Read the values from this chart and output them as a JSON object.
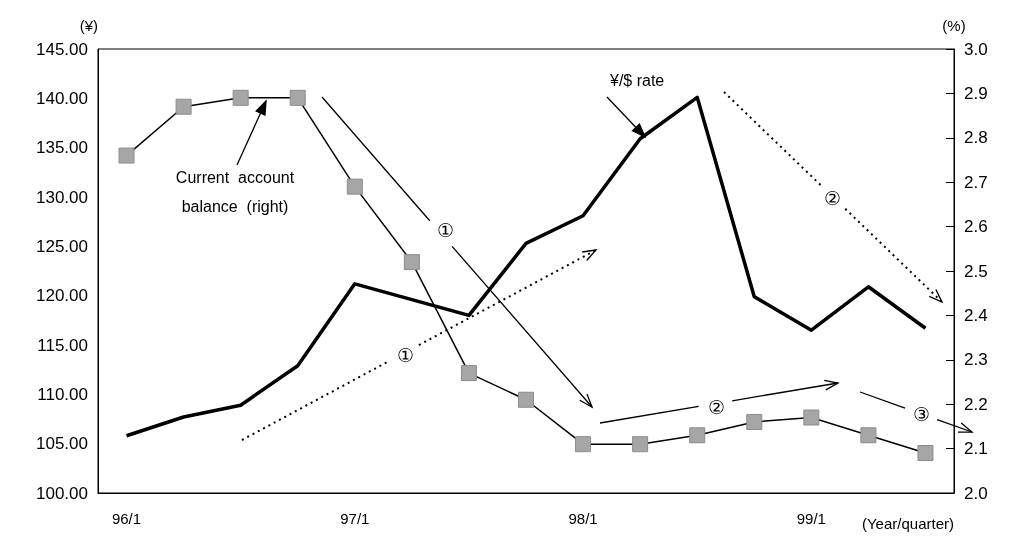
{
  "chart_data": {
    "type": "line",
    "ylabel": "(¥)",
    "y2label": "(%)",
    "xlabel": "(Year/quarter)",
    "categories": [
      "96/1",
      null,
      null,
      null,
      "97/1",
      null,
      null,
      null,
      "98/1",
      null,
      null,
      null,
      "99/1",
      null,
      null
    ],
    "series": [
      {
        "name": "¥/$ rate",
        "color": "#000000",
        "marker": "none",
        "values": [
          105.8,
          107.7,
          108.9,
          112.9,
          121.2,
          119.6,
          118.0,
          125.3,
          128.1,
          135.9,
          140.1,
          119.9,
          116.5,
          120.9,
          116.7
        ]
      },
      {
        "name": "Current account balance (right)",
        "color": "#000000",
        "axis": "y2",
        "marker": "square",
        "values": [
          2.76,
          2.87,
          2.89,
          2.89,
          2.69,
          2.52,
          2.27,
          2.21,
          2.11,
          2.11,
          2.13,
          2.16,
          2.17,
          2.13,
          2.09
        ]
      }
    ],
    "ylim": [
      100,
      145
    ],
    "yticks": [
      {
        "value": 100,
        "label": "100.00"
      },
      {
        "value": 105,
        "label": "105.00"
      },
      {
        "value": 110,
        "label": "110.00"
      },
      {
        "value": 115,
        "label": "115.00"
      },
      {
        "value": 120,
        "label": "120.00"
      },
      {
        "value": 125,
        "label": "125.00"
      },
      {
        "value": 130,
        "label": "130.00"
      },
      {
        "value": 135,
        "label": "135.00"
      },
      {
        "value": 140,
        "label": "140.00"
      },
      {
        "value": 145,
        "label": "145.00"
      }
    ],
    "y2lim": [
      2.0,
      3.0
    ],
    "y2ticks": [
      {
        "value": 2.0,
        "label": "2.0"
      },
      2.1,
      2.2,
      2.3,
      2.4,
      2.5,
      2.6,
      2.7,
      2.8,
      2.9,
      {
        "value": 3.0,
        "label": "3.0"
      }
    ],
    "annotations": [
      "①",
      "①",
      "②",
      "②",
      "③"
    ],
    "grid": false,
    "legend": false
  }
}
